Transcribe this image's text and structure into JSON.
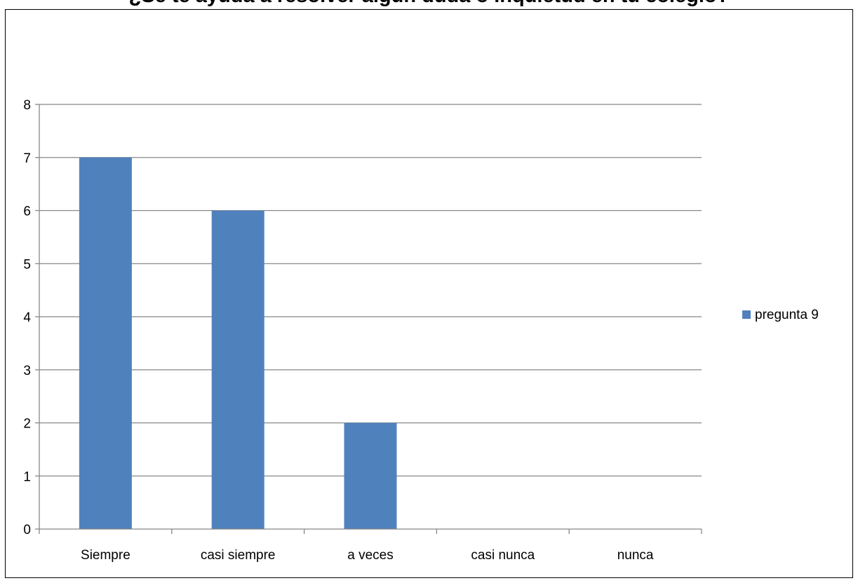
{
  "chart_data": {
    "type": "bar",
    "title": "¿Se te ayuda a resolver algún duda o inquietud en tu colegio?",
    "categories": [
      "Siempre",
      "casi siempre",
      "a veces",
      "casi nunca",
      "nunca"
    ],
    "series": [
      {
        "name": "pregunta 9",
        "values": [
          7,
          6,
          2,
          0,
          0
        ],
        "color": "#4f81bd"
      }
    ],
    "ylim": [
      0,
      8
    ],
    "yticks": [
      0,
      1,
      2,
      3,
      4,
      5,
      6,
      7,
      8
    ],
    "grid": true,
    "legend_position": "right",
    "xlabel": "",
    "ylabel": ""
  }
}
